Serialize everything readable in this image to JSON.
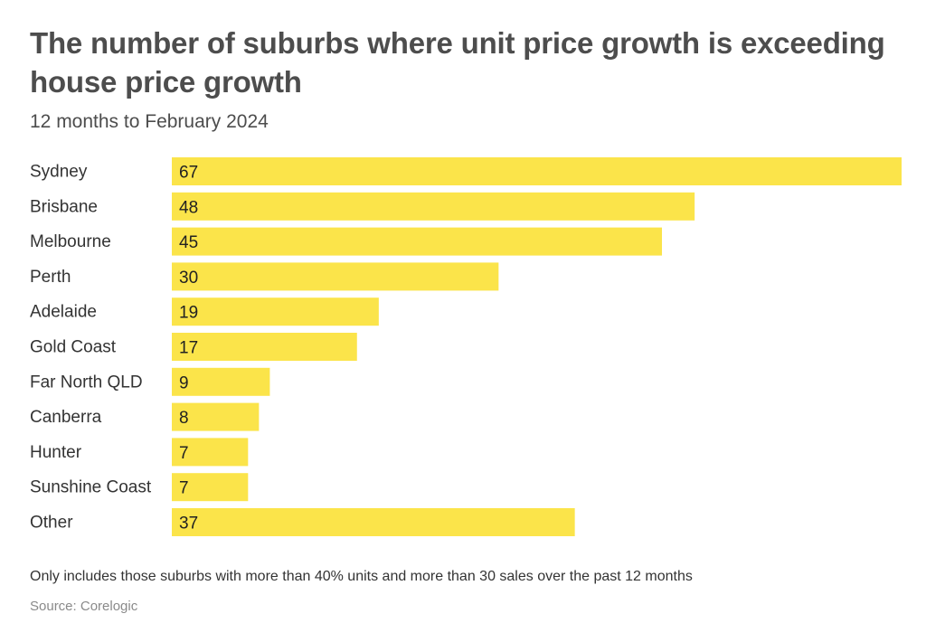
{
  "chart_data": {
    "type": "bar",
    "orientation": "horizontal",
    "title": "The number of suburbs where unit price growth is exceeding house price growth",
    "subtitle": "12 months to February 2024",
    "categories": [
      "Sydney",
      "Brisbane",
      "Melbourne",
      "Perth",
      "Adelaide",
      "Gold Coast",
      "Far North QLD",
      "Canberra",
      "Hunter",
      "Sunshine Coast",
      "Other"
    ],
    "values": [
      67,
      48,
      45,
      30,
      19,
      17,
      9,
      8,
      7,
      7,
      37
    ],
    "xlim": [
      0,
      67
    ],
    "grid": false,
    "legend": "none",
    "bar_color": "#fbe44a",
    "note": "Only includes those suburbs with more than 40% units and more than 30 sales over the past 12 months",
    "source": "Source: Corelogic"
  }
}
